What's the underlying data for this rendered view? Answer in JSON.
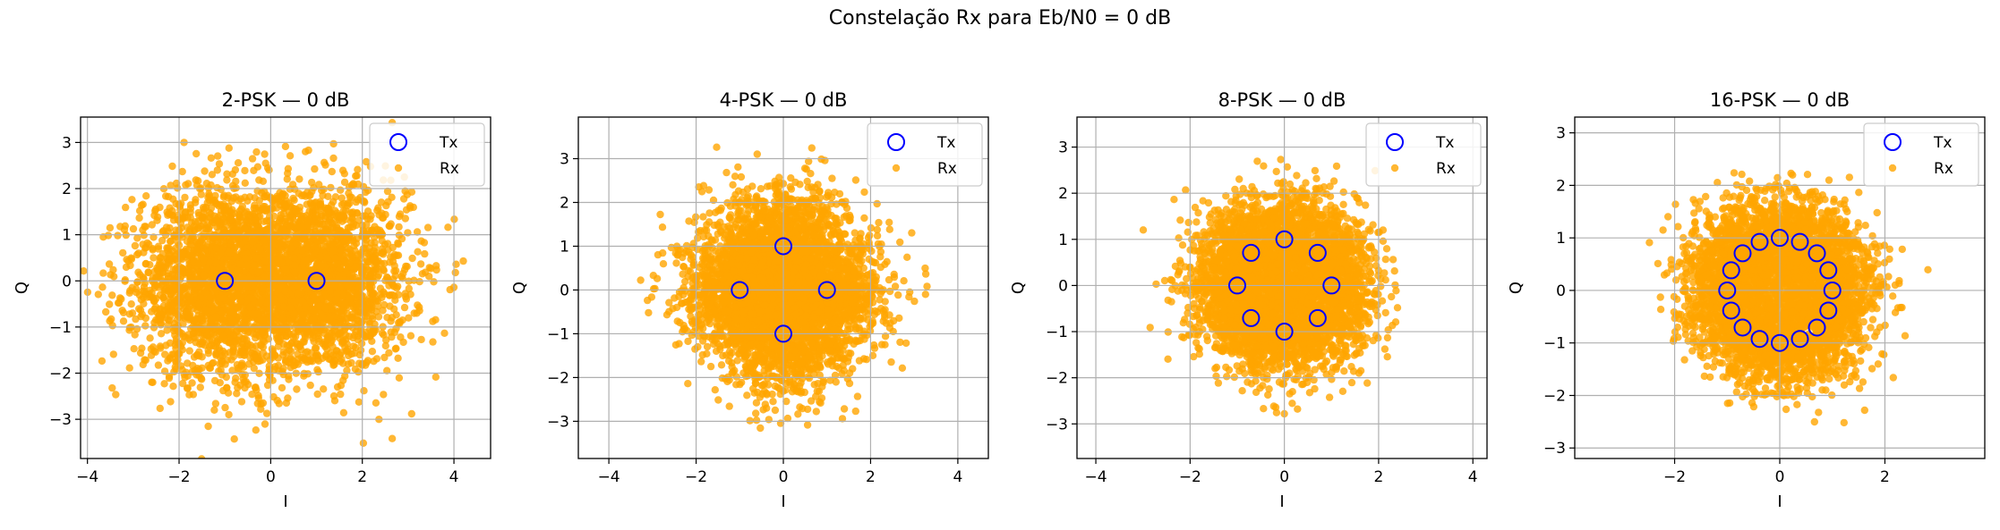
{
  "figure": {
    "suptitle": "Constelação Rx para Eb/N0 = 0 dB",
    "colors": {
      "tx_edge": "#0000ff",
      "rx_fill": "#ffa500",
      "grid": "#b0b0b0",
      "axes": "#000000"
    }
  },
  "chart_data": [
    {
      "type": "scatter",
      "title": "2-PSK — 0 dB",
      "xlabel": "I",
      "ylabel": "Q",
      "xlim": [
        -4.15,
        4.8
      ],
      "ylim": [
        -3.85,
        3.55
      ],
      "xticks": [
        -4,
        -2,
        0,
        2,
        4
      ],
      "yticks": [
        -3,
        -2,
        -1,
        0,
        1,
        2,
        3
      ],
      "grid": true,
      "legend": {
        "position": "upper right",
        "entries": [
          "Tx",
          "Rx"
        ]
      },
      "series": [
        {
          "name": "Tx",
          "marker": "hollow-circle",
          "points": [
            [
              -1,
              0
            ],
            [
              1,
              0
            ]
          ]
        },
        {
          "name": "Rx",
          "marker": "dot",
          "noise_sigma": 1.0,
          "points_shown": "dense AWGN cloud around Tx symbols"
        }
      ]
    },
    {
      "type": "scatter",
      "title": "4-PSK — 0 dB",
      "xlabel": "I",
      "ylabel": "Q",
      "xlim": [
        -4.7,
        4.7
      ],
      "ylim": [
        -3.85,
        3.95
      ],
      "xticks": [
        -4,
        -2,
        0,
        2,
        4
      ],
      "yticks": [
        -3,
        -2,
        -1,
        0,
        1,
        2,
        3
      ],
      "grid": true,
      "legend": {
        "position": "upper right",
        "entries": [
          "Tx",
          "Rx"
        ]
      },
      "series": [
        {
          "name": "Tx",
          "marker": "hollow-circle",
          "points": [
            [
              1,
              0
            ],
            [
              0,
              1
            ],
            [
              -1,
              0
            ],
            [
              0,
              -1
            ]
          ]
        },
        {
          "name": "Rx",
          "marker": "dot",
          "noise_sigma": 0.71,
          "points_shown": "dense AWGN cloud around Tx symbols"
        }
      ]
    },
    {
      "type": "scatter",
      "title": "8-PSK — 0 dB",
      "xlabel": "I",
      "ylabel": "Q",
      "xlim": [
        -4.4,
        4.3
      ],
      "ylim": [
        -3.75,
        3.65
      ],
      "xticks": [
        -4,
        -2,
        0,
        2,
        4
      ],
      "yticks": [
        -3,
        -2,
        -1,
        0,
        1,
        2,
        3
      ],
      "grid": true,
      "legend": {
        "position": "upper right",
        "entries": [
          "Tx",
          "Rx"
        ]
      },
      "series": [
        {
          "name": "Tx",
          "marker": "hollow-circle",
          "points": [
            [
              1,
              0
            ],
            [
              0.707,
              0.707
            ],
            [
              0,
              1
            ],
            [
              -0.707,
              0.707
            ],
            [
              -1,
              0
            ],
            [
              -0.707,
              -0.707
            ],
            [
              0,
              -1
            ],
            [
              0.707,
              -0.707
            ]
          ]
        },
        {
          "name": "Rx",
          "marker": "dot",
          "noise_sigma": 0.577,
          "points_shown": "dense AWGN cloud around Tx symbols"
        }
      ]
    },
    {
      "type": "scatter",
      "title": "16-PSK — 0 dB",
      "xlabel": "I",
      "ylabel": "Q",
      "xlim": [
        -3.9,
        3.9
      ],
      "ylim": [
        -3.2,
        3.3
      ],
      "xticks": [
        -2,
        0,
        2
      ],
      "yticks": [
        -3,
        -2,
        -1,
        0,
        1,
        2,
        3
      ],
      "grid": true,
      "legend": {
        "position": "upper right",
        "entries": [
          "Tx",
          "Rx"
        ]
      },
      "series": [
        {
          "name": "Tx",
          "marker": "hollow-circle",
          "points": [
            [
              1,
              0
            ],
            [
              0.924,
              0.383
            ],
            [
              0.707,
              0.707
            ],
            [
              0.383,
              0.924
            ],
            [
              0,
              1
            ],
            [
              -0.383,
              0.924
            ],
            [
              -0.707,
              0.707
            ],
            [
              -0.924,
              0.383
            ],
            [
              -1,
              0
            ],
            [
              -0.924,
              -0.383
            ],
            [
              -0.707,
              -0.707
            ],
            [
              -0.383,
              -0.924
            ],
            [
              0,
              -1
            ],
            [
              0.383,
              -0.924
            ],
            [
              0.707,
              -0.707
            ],
            [
              0.924,
              -0.383
            ]
          ]
        },
        {
          "name": "Rx",
          "marker": "dot",
          "noise_sigma": 0.5,
          "points_shown": "dense AWGN cloud around Tx symbols"
        }
      ]
    }
  ]
}
